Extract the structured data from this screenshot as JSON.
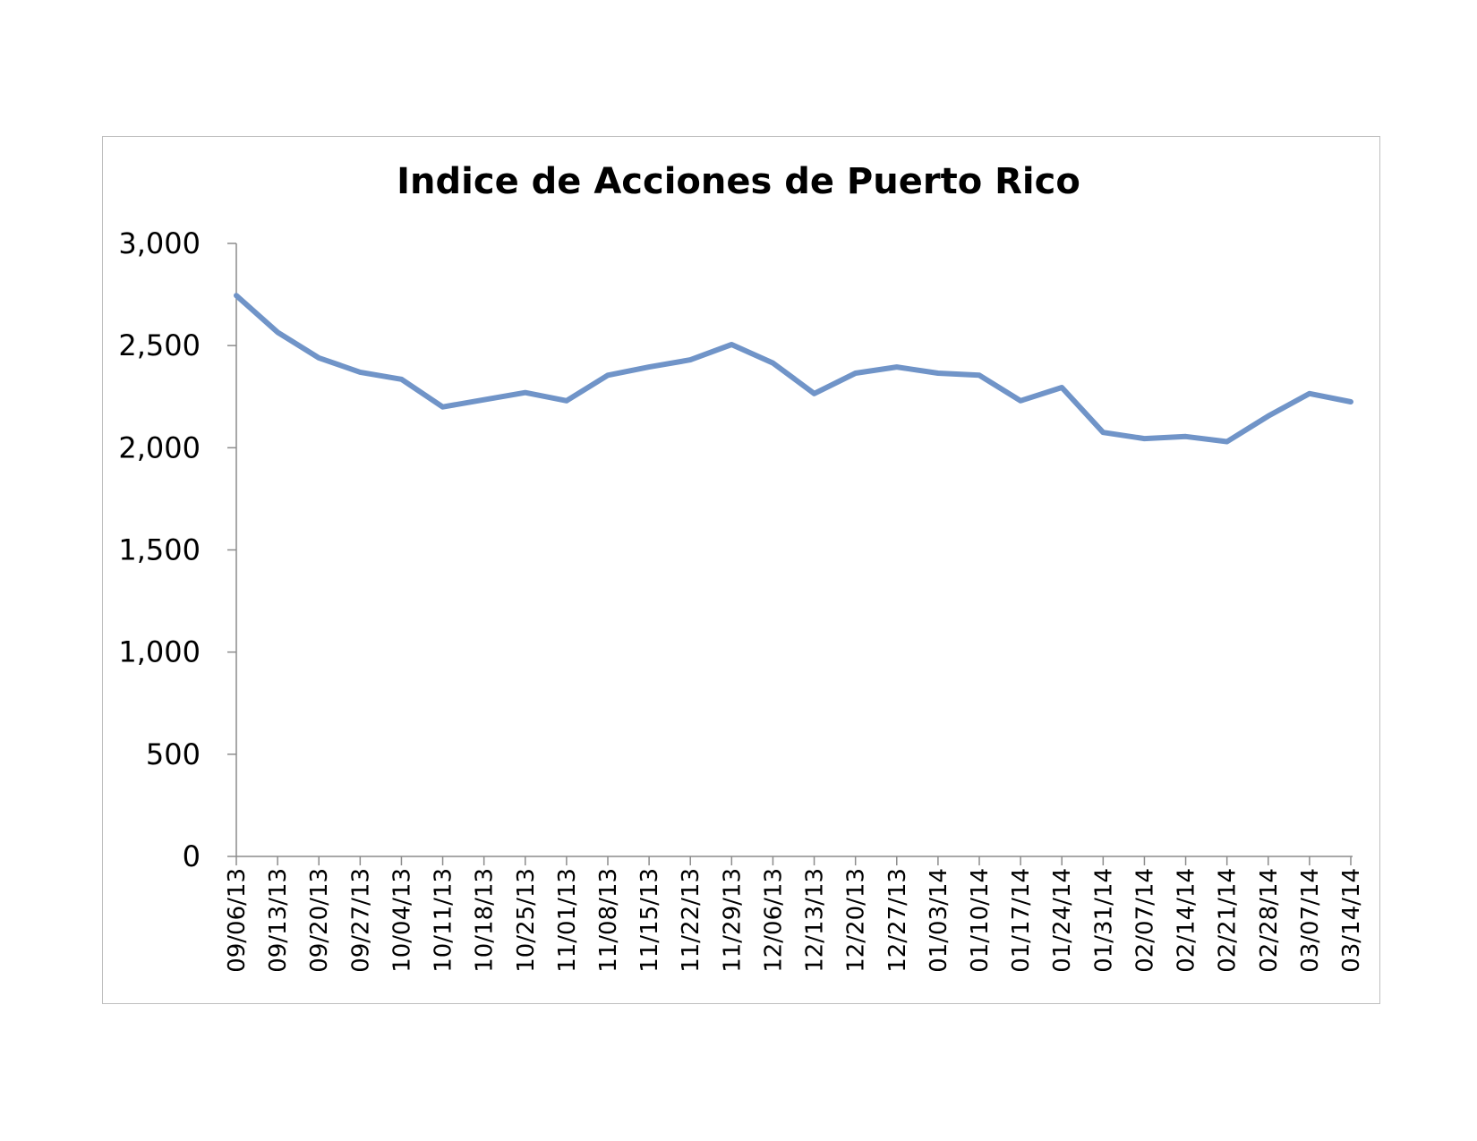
{
  "chart_data": {
    "type": "line",
    "title": "Indice de Acciones de Puerto Rico",
    "xlabel": "",
    "ylabel": "",
    "ylim": [
      0,
      3000
    ],
    "yticks": [
      "0",
      "500",
      "1,000",
      "1,500",
      "2,000",
      "2,500",
      "3,000"
    ],
    "ytick_values": [
      0,
      500,
      1000,
      1500,
      2000,
      2500,
      3000
    ],
    "grid": false,
    "legend": "none",
    "line_color": "#7094c8",
    "categories": [
      "09/06/13",
      "09/13/13",
      "09/20/13",
      "09/27/13",
      "10/04/13",
      "10/11/13",
      "10/18/13",
      "10/25/13",
      "11/01/13",
      "11/08/13",
      "11/15/13",
      "11/22/13",
      "11/29/13",
      "12/06/13",
      "12/13/13",
      "12/20/13",
      "12/27/13",
      "01/03/14",
      "01/10/14",
      "01/17/14",
      "01/24/14",
      "01/31/14",
      "02/07/14",
      "02/14/14",
      "02/21/14",
      "02/28/14",
      "03/07/14",
      "03/14/14"
    ],
    "series": [
      {
        "values": [
          2745,
          2565,
          2440,
          2370,
          2335,
          2200,
          2235,
          2270,
          2230,
          2355,
          2395,
          2430,
          2505,
          2415,
          2265,
          2365,
          2395,
          2365,
          2355,
          2230,
          2295,
          2075,
          2045,
          2055,
          2030,
          2155,
          2265,
          2225
        ]
      }
    ]
  }
}
